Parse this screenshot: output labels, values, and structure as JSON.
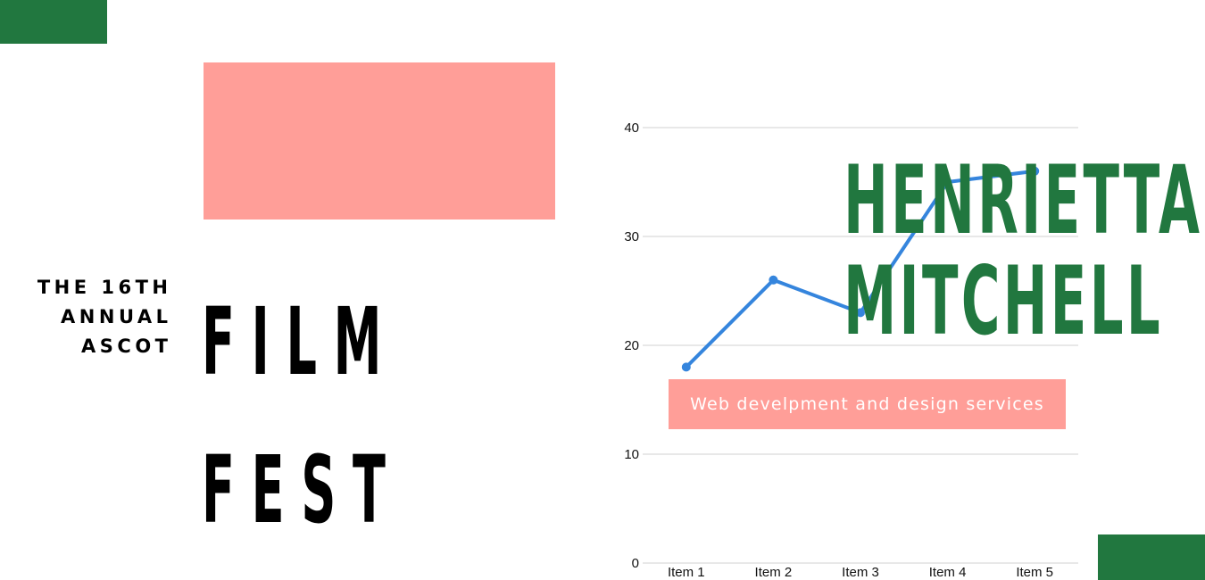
{
  "colors": {
    "green": "#21773f",
    "pink": "#ff9e98",
    "line": "#3585dd",
    "grid": "#d0d0d0"
  },
  "event": {
    "subtitle_lines": [
      "THE 16TH",
      "ANNUAL",
      "ASCOT"
    ],
    "title_lines": [
      "FILM",
      "FEST"
    ]
  },
  "person": {
    "name_lines": [
      "HENRIETTA",
      "MITCHELL"
    ],
    "tagline": "Web develpment and design services"
  },
  "chart_data": {
    "type": "line",
    "categories": [
      "Item 1",
      "Item 2",
      "Item 3",
      "Item 4",
      "Item 5"
    ],
    "series": [
      {
        "values": [
          18,
          26,
          23,
          35,
          36
        ]
      }
    ],
    "title": "",
    "xlabel": "",
    "ylabel": "",
    "ylim": [
      0,
      40
    ],
    "yticks": [
      0,
      10,
      20,
      30,
      40
    ],
    "grid": true,
    "legend": "none"
  }
}
